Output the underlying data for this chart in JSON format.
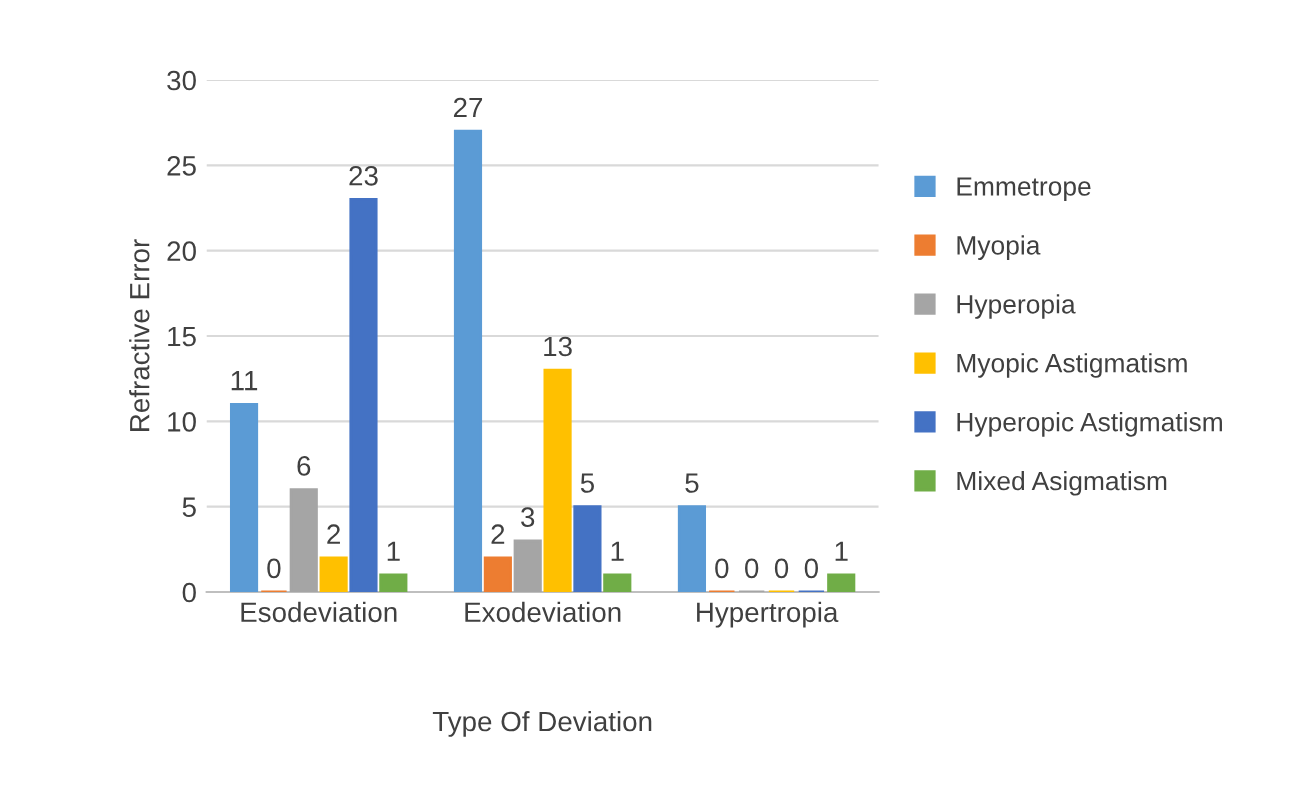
{
  "chart_data": {
    "type": "bar",
    "xlabel": "Type Of Deviation",
    "ylabel": "Refractive Error",
    "categories": [
      "Esodeviation",
      "Exodeviation",
      "Hypertropia"
    ],
    "series": [
      {
        "name": "Emmetrope",
        "color": "#5b9bd5",
        "values": [
          11,
          27,
          5
        ]
      },
      {
        "name": "Myopia",
        "color": "#ed7d31",
        "values": [
          0,
          2,
          0
        ]
      },
      {
        "name": "Hyperopia",
        "color": "#a5a5a5",
        "values": [
          6,
          3,
          0
        ]
      },
      {
        "name": "Myopic Astigmatism",
        "color": "#ffc000",
        "values": [
          2,
          13,
          0
        ]
      },
      {
        "name": "Hyperopic Astigmatism",
        "color": "#4472c4",
        "values": [
          23,
          5,
          0
        ]
      },
      {
        "name": "Mixed Asigmatism",
        "color": "#70ad47",
        "values": [
          1,
          1,
          1
        ]
      }
    ],
    "ylim": [
      0,
      30
    ],
    "yticks": [
      0,
      5,
      10,
      15,
      20,
      25,
      30
    ],
    "grid": "y",
    "legend": "right",
    "data_labels": true
  }
}
